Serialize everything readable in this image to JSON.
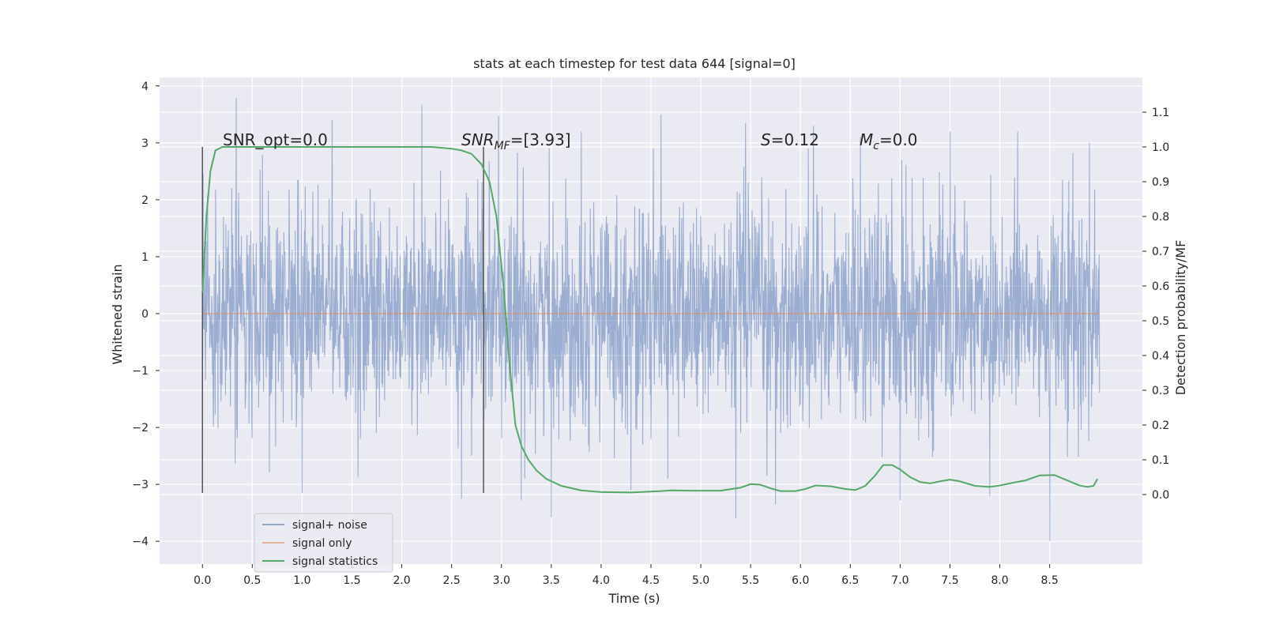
{
  "chart_data": {
    "type": "line",
    "title": "stats at each timestep for test data 644 [signal=0]",
    "xlabel": "Time (s)",
    "ylabel_left": "Whitened strain",
    "ylabel_right": "Detection probability/MF",
    "xlim": [
      -0.43,
      9.43
    ],
    "ylim_left": [
      -4.4,
      4.15
    ],
    "ylim_right": [
      -0.2,
      1.2
    ],
    "x_ticks": [
      "0.0",
      "0.5",
      "1.0",
      "1.5",
      "2.0",
      "2.5",
      "3.0",
      "3.5",
      "4.0",
      "4.5",
      "5.0",
      "5.5",
      "6.0",
      "6.5",
      "7.0",
      "7.5",
      "8.0",
      "8.5"
    ],
    "y_ticks_left": [
      "4",
      "3",
      "2",
      "1",
      "0",
      "−1",
      "−2",
      "−3",
      "−4"
    ],
    "y_ticks_right": [
      "1.1",
      "1.0",
      "0.9",
      "0.8",
      "0.7",
      "0.6",
      "0.5",
      "0.4",
      "0.3",
      "0.2",
      "0.1",
      "0.0"
    ],
    "grid": true,
    "background": "#eaeaf2",
    "annotations": {
      "snr_opt": "SNR_opt=0.0",
      "snr_mf_main": "SNR",
      "snr_mf_sub": "MF",
      "snr_mf_val": "=[3.93]",
      "s_main": "S",
      "s_val": "=0.12",
      "mc_main": "M",
      "mc_sub": "c",
      "mc_val": "=0.0"
    },
    "vlines_x": [
      0.0,
      2.82
    ],
    "vline_range": [
      -3.15,
      2.93
    ],
    "legend_position": "lower-left",
    "series": [
      {
        "name": "signal+ noise",
        "color": "#4c72b0",
        "axis": "left",
        "x_range": [
          0.0,
          9.0
        ],
        "envelope_typical": 1.7,
        "spikes": [
          [
            0.34,
            3.79
          ],
          [
            0.33,
            -2.64
          ],
          [
            0.67,
            -2.79
          ],
          [
            1.0,
            -3.15
          ],
          [
            2.2,
            3.67
          ],
          [
            2.97,
            3.47
          ],
          [
            3.2,
            -3.27
          ],
          [
            3.5,
            -3.58
          ],
          [
            3.8,
            3.2
          ],
          [
            4.6,
            3.5
          ],
          [
            5.35,
            -3.6
          ],
          [
            5.45,
            3.35
          ],
          [
            5.75,
            -3.35
          ],
          [
            6.13,
            3.3
          ],
          [
            7.0,
            -3.28
          ],
          [
            7.9,
            -3.2
          ],
          [
            8.18,
            3.2
          ],
          [
            8.5,
            -4.0
          ],
          [
            8.9,
            3.0
          ],
          [
            6.6,
            3.1
          ],
          [
            2.6,
            -3.25
          ],
          [
            4.3,
            -3.1
          ],
          [
            1.3,
            3.4
          ],
          [
            7.5,
            3.2
          ]
        ]
      },
      {
        "name": "signal only",
        "color": "#dd8452",
        "axis": "left",
        "x": [
          0.0,
          9.0
        ],
        "y": [
          0.0,
          0.0
        ]
      },
      {
        "name": "signal statistics",
        "color": "#55a868",
        "axis": "right",
        "x": [
          0.0,
          0.04,
          0.08,
          0.13,
          0.2,
          0.3,
          0.5,
          1.0,
          1.5,
          2.0,
          2.3,
          2.5,
          2.6,
          2.7,
          2.8,
          2.88,
          2.95,
          3.02,
          3.08,
          3.14,
          3.2,
          3.27,
          3.35,
          3.45,
          3.6,
          3.8,
          4.0,
          4.3,
          4.6,
          4.7,
          4.9,
          5.2,
          5.4,
          5.5,
          5.6,
          5.7,
          5.8,
          5.95,
          6.05,
          6.15,
          6.3,
          6.45,
          6.55,
          6.65,
          6.75,
          6.83,
          6.92,
          7.0,
          7.1,
          7.2,
          7.3,
          7.4,
          7.5,
          7.6,
          7.75,
          7.9,
          8.0,
          8.15,
          8.25,
          8.3,
          8.4,
          8.55,
          8.7,
          8.8,
          8.88,
          8.94,
          8.98
        ],
        "y": [
          0.58,
          0.8,
          0.93,
          0.99,
          1.0,
          1.0,
          1.0,
          1.0,
          1.0,
          1.0,
          1.0,
          0.995,
          0.99,
          0.98,
          0.95,
          0.9,
          0.8,
          0.6,
          0.38,
          0.2,
          0.14,
          0.1,
          0.07,
          0.045,
          0.025,
          0.012,
          0.007,
          0.006,
          0.01,
          0.012,
          0.011,
          0.011,
          0.02,
          0.03,
          0.028,
          0.018,
          0.01,
          0.01,
          0.016,
          0.026,
          0.024,
          0.016,
          0.013,
          0.025,
          0.055,
          0.085,
          0.085,
          0.072,
          0.05,
          0.036,
          0.032,
          0.038,
          0.043,
          0.038,
          0.025,
          0.022,
          0.026,
          0.035,
          0.04,
          0.045,
          0.055,
          0.056,
          0.038,
          0.026,
          0.022,
          0.025,
          0.045
        ]
      }
    ]
  }
}
